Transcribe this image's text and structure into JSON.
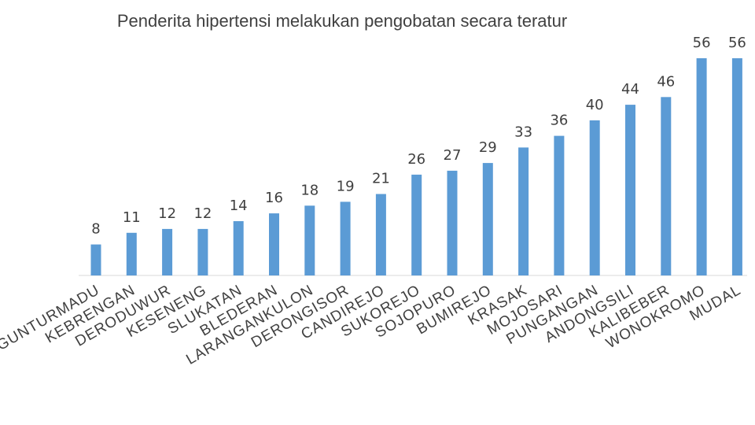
{
  "chart_data": {
    "type": "bar",
    "title": "Penderita hipertensi melakukan pengobatan secara teratur",
    "xlabel": "",
    "ylabel": "",
    "ylim": [
      0,
      56
    ],
    "grid": false,
    "legend": "none",
    "bar_color": "#5b9bd5",
    "categories": [
      "GUNTURMADU",
      "KEBRENGAN",
      "DERODUWUR",
      "KESENENG",
      "SLUKATAN",
      "BLEDERAN",
      "LARANGANKULON",
      "DERONGISOR",
      "CANDIREJO",
      "SUKOREJO",
      "SOJOPURO",
      "BUMIREJO",
      "KRASAK",
      "MOJOSARI",
      "PUNGANGAN",
      "ANDONGSILI",
      "KALIBEBER",
      "WONOKROMO",
      "MUDAL"
    ],
    "values": [
      8,
      11,
      12,
      12,
      14,
      16,
      18,
      19,
      21,
      26,
      27,
      29,
      33,
      36,
      40,
      44,
      46,
      56,
      56
    ]
  }
}
